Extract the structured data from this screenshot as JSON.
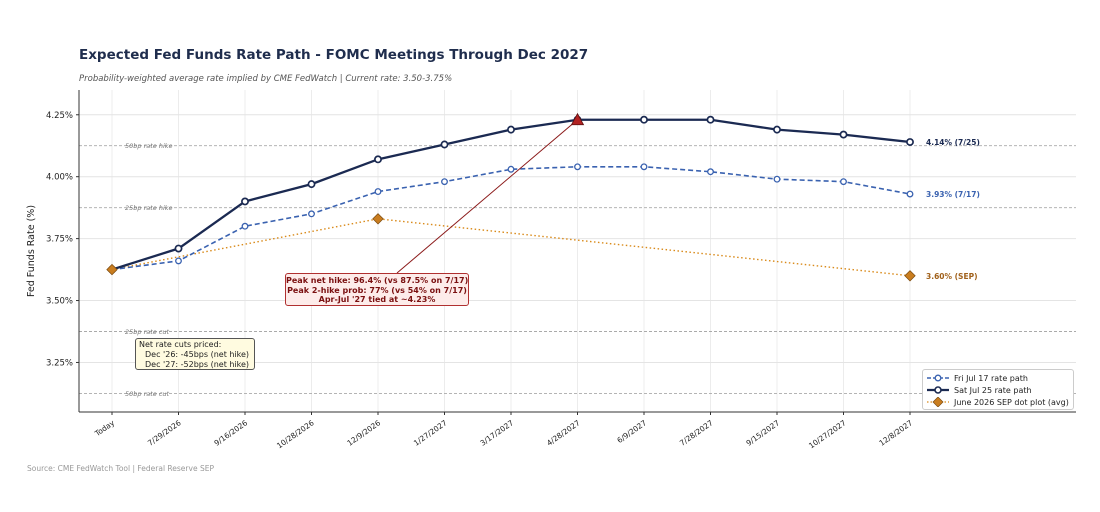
{
  "header": {
    "title": "Expected Fed Funds Rate Path - FOMC Meetings Through Dec 2027",
    "subtitle": "Probability-weighted average rate implied by CME FedWatch  |  Current rate: 3.50-3.75%"
  },
  "footer": {
    "source": "Source: CME FedWatch Tool  |  Federal Reserve SEP"
  },
  "colors": {
    "fri": "#3a62b0",
    "sat": "#1b2a52",
    "sep_line": "#d98a1a",
    "sep_marker": "#c97d1f",
    "peak_marker": "#b22222",
    "peak_line": "#8b1a1a"
  },
  "chart_data": {
    "type": "line",
    "title": "Expected Fed Funds Rate Path - FOMC Meetings Through Dec 2027",
    "ylabel": "Fed Funds Rate (%)",
    "xlabel": "",
    "ylim": [
      3.05,
      4.35
    ],
    "yticks": [
      "4.25%",
      "4.00%",
      "3.75%",
      "3.50%",
      "3.25%"
    ],
    "ytick_values": [
      4.25,
      4.0,
      3.75,
      3.5,
      3.25
    ],
    "grid": true,
    "categories": [
      "Today",
      "7/29/2026",
      "9/16/2026",
      "10/28/2026",
      "12/9/2026",
      "1/27/2027",
      "3/17/2027",
      "4/28/2027",
      "6/9/2027",
      "7/28/2027",
      "9/15/2027",
      "10/27/2027",
      "12/8/2027"
    ],
    "series": [
      {
        "name": "Fri Jul 17 rate path",
        "values": [
          3.625,
          3.66,
          3.8,
          3.85,
          3.94,
          3.98,
          4.03,
          4.04,
          4.04,
          4.02,
          3.99,
          3.98,
          3.93
        ],
        "end_label": "3.93% (7/17)"
      },
      {
        "name": "Sat Jul 25 rate path",
        "values": [
          3.625,
          3.71,
          3.9,
          3.97,
          4.07,
          4.13,
          4.19,
          4.23,
          4.23,
          4.23,
          4.19,
          4.17,
          4.14
        ],
        "end_label": "4.14% (7/25)"
      },
      {
        "name": "June 2026 SEP dot plot (avg)",
        "points": [
          {
            "x": "Today",
            "y": 3.625
          },
          {
            "x": "12/9/2026",
            "y": 3.83
          },
          {
            "x": "12/8/2027",
            "y": 3.6
          }
        ],
        "end_label": "3.60% (SEP)"
      }
    ],
    "reference_lines": [
      {
        "label": "50bp rate hike",
        "y": 4.125
      },
      {
        "label": "25bp rate hike",
        "y": 3.875
      },
      {
        "label": "25bp rate cut",
        "y": 3.375
      },
      {
        "label": "50bp rate cut",
        "y": 3.125
      }
    ],
    "peak_marker": {
      "x": "4/28/2027",
      "y": 4.23
    },
    "annotations": {
      "peak": [
        "Peak net hike: 96.4% (vs 87.5% on 7/17)",
        "Peak 2-hike prob: 77% (vs 54% on 7/17)",
        "Apr-Jul '27 tied at ~4.23%"
      ],
      "cuts": [
        "Net rate cuts priced:",
        "Dec '26: -45bps (net hike)",
        "Dec '27: -52bps (net hike)"
      ]
    },
    "legend_position": "lower-right"
  }
}
